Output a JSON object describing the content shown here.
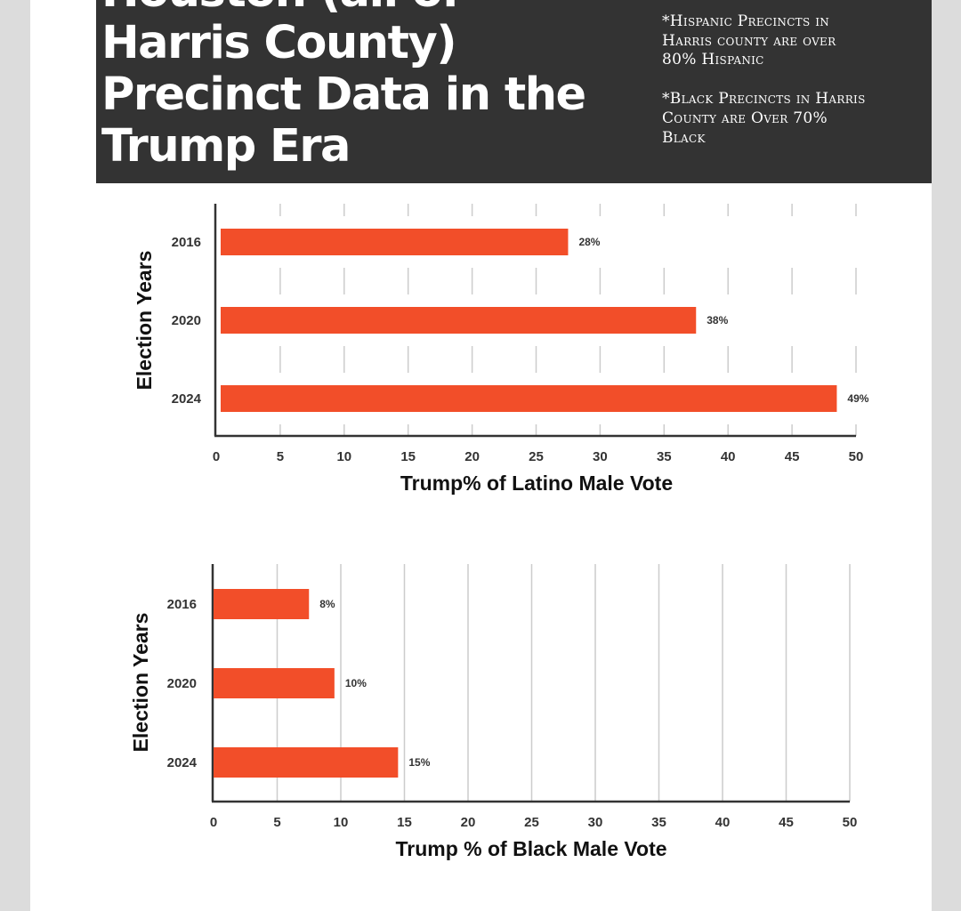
{
  "header": {
    "title": "Houston (all of Harris County) Precinct Data in the Trump Era",
    "notes": [
      "*Hispanic Precincts in Harris county are over 80% Hispanic",
      "*Black Precincts in Harris County are Over 70% Black"
    ]
  },
  "colors": {
    "bar": "#f24e29",
    "header_bg": "#333333",
    "grid": "#cccccc",
    "axis": "#333333"
  },
  "chart_data": [
    {
      "type": "bar",
      "orientation": "horizontal",
      "categories": [
        "2016",
        "2020",
        "2024"
      ],
      "values": [
        27.5,
        37.5,
        48.5
      ],
      "data_labels": [
        "28%",
        "38%",
        "49%"
      ],
      "xlabel": "Trump% of Latino Male Vote",
      "ylabel": "Election Years",
      "xlim": [
        0,
        50
      ],
      "xticks": [
        "0",
        "5",
        "10",
        "15",
        "20",
        "25",
        "30",
        "35",
        "40",
        "45",
        "50"
      ],
      "grid": "vertical"
    },
    {
      "type": "bar",
      "orientation": "horizontal",
      "categories": [
        "2016",
        "2020",
        "2024"
      ],
      "values": [
        7.5,
        9.5,
        14.5
      ],
      "data_labels": [
        "8%",
        "10%",
        "15%"
      ],
      "xlabel": "Trump % of Black Male Vote",
      "ylabel": "Election Years",
      "xlim": [
        0,
        50
      ],
      "xticks": [
        "0",
        "5",
        "10",
        "15",
        "20",
        "25",
        "30",
        "35",
        "40",
        "45",
        "50"
      ],
      "grid": "vertical"
    }
  ]
}
